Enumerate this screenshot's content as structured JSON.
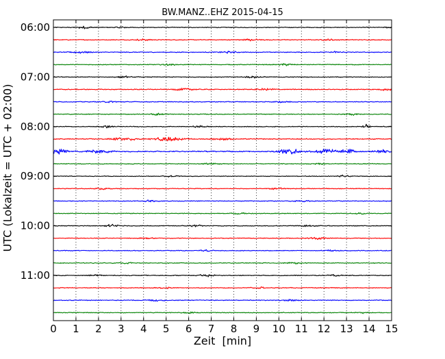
{
  "chart_data": {
    "type": "line",
    "title": "BW.MANZ..EHZ 2015-04-15",
    "xlabel": "Zeit  [min]",
    "ylabel": "UTC (Lokalzeit = UTC + 02:00)",
    "xlim": [
      0,
      15
    ],
    "x_ticks": [
      "0",
      "1",
      "2",
      "3",
      "4",
      "5",
      "6",
      "7",
      "8",
      "9",
      "10",
      "11",
      "12",
      "13",
      "14",
      "15"
    ],
    "y_tick_labels": [
      "06:00",
      "07:00",
      "08:00",
      "09:00",
      "10:00",
      "11:00"
    ],
    "trace_interval_minutes": 15,
    "grid": "vertical dotted at each minute",
    "color_cycle": [
      "#000000",
      "#ff0000",
      "#0000ff",
      "#008000"
    ],
    "series": [
      {
        "start": "06:00",
        "color": "#000000",
        "amplitude": 0.35,
        "events": [
          {
            "x": 1.4,
            "amp": 0.9,
            "width": 0.35
          },
          {
            "x": 3.0,
            "amp": 0.7,
            "width": 0.2
          },
          {
            "x": 14.9,
            "amp": 0.7,
            "width": 0.15
          }
        ]
      },
      {
        "start": "06:15",
        "color": "#ff0000",
        "amplitude": 0.35,
        "events": [
          {
            "x": 4.0,
            "amp": 0.7,
            "width": 0.3
          },
          {
            "x": 8.7,
            "amp": 0.9,
            "width": 0.4
          },
          {
            "x": 12.3,
            "amp": 0.6,
            "width": 0.3
          }
        ]
      },
      {
        "start": "06:30",
        "color": "#0000ff",
        "amplitude": 0.35,
        "events": [
          {
            "x": 1.2,
            "amp": 0.8,
            "width": 0.4
          },
          {
            "x": 7.8,
            "amp": 0.7,
            "width": 0.4
          },
          {
            "x": 12.6,
            "amp": 0.6,
            "width": 0.3
          }
        ]
      },
      {
        "start": "06:45",
        "color": "#008000",
        "amplitude": 0.35,
        "events": [
          {
            "x": 5.1,
            "amp": 0.5,
            "width": 0.3
          },
          {
            "x": 10.3,
            "amp": 0.6,
            "width": 0.3
          }
        ]
      },
      {
        "start": "07:00",
        "color": "#000000",
        "amplitude": 0.35,
        "events": [
          {
            "x": 3.1,
            "amp": 0.6,
            "width": 0.3
          },
          {
            "x": 8.9,
            "amp": 0.7,
            "width": 0.4
          }
        ]
      },
      {
        "start": "07:15",
        "color": "#ff0000",
        "amplitude": 0.4,
        "events": [
          {
            "x": 5.8,
            "amp": 0.8,
            "width": 0.4
          },
          {
            "x": 9.4,
            "amp": 0.7,
            "width": 0.4
          },
          {
            "x": 14.8,
            "amp": 0.7,
            "width": 0.3
          }
        ]
      },
      {
        "start": "07:30",
        "color": "#0000ff",
        "amplitude": 0.35,
        "events": [
          {
            "x": 2.5,
            "amp": 0.5,
            "width": 0.3
          },
          {
            "x": 10.2,
            "amp": 0.6,
            "width": 0.3
          }
        ]
      },
      {
        "start": "07:45",
        "color": "#008000",
        "amplitude": 0.35,
        "events": [
          {
            "x": 4.6,
            "amp": 0.6,
            "width": 0.3
          },
          {
            "x": 13.3,
            "amp": 0.6,
            "width": 0.3
          }
        ]
      },
      {
        "start": "08:00",
        "color": "#000000",
        "amplitude": 0.35,
        "events": [
          {
            "x": 2.4,
            "amp": 0.8,
            "width": 0.3
          },
          {
            "x": 6.5,
            "amp": 0.6,
            "width": 0.3
          },
          {
            "x": 13.9,
            "amp": 1.5,
            "width": 0.15
          }
        ]
      },
      {
        "start": "08:15",
        "color": "#ff0000",
        "amplitude": 0.4,
        "events": [
          {
            "x": 3.1,
            "amp": 1.2,
            "width": 0.5
          },
          {
            "x": 5.1,
            "amp": 1.3,
            "width": 0.6
          },
          {
            "x": 7.5,
            "amp": 0.8,
            "width": 0.4
          }
        ]
      },
      {
        "start": "08:30",
        "color": "#0000ff",
        "amplitude": 0.5,
        "events": [
          {
            "x": 0.25,
            "amp": 2.6,
            "width": 0.3
          },
          {
            "x": 2.0,
            "amp": 1.0,
            "width": 0.6
          },
          {
            "x": 10.5,
            "amp": 2.4,
            "width": 0.45
          },
          {
            "x": 12.1,
            "amp": 2.0,
            "width": 0.45
          },
          {
            "x": 13.1,
            "amp": 1.8,
            "width": 0.3
          },
          {
            "x": 14.6,
            "amp": 1.4,
            "width": 0.3
          }
        ]
      },
      {
        "start": "08:45",
        "color": "#008000",
        "amplitude": 0.35,
        "events": [
          {
            "x": 7.0,
            "amp": 0.5,
            "width": 0.4
          },
          {
            "x": 11.7,
            "amp": 0.6,
            "width": 0.3
          }
        ]
      },
      {
        "start": "09:00",
        "color": "#000000",
        "amplitude": 0.3,
        "events": [
          {
            "x": 5.3,
            "amp": 0.6,
            "width": 0.3
          },
          {
            "x": 12.9,
            "amp": 0.6,
            "width": 0.3
          }
        ]
      },
      {
        "start": "09:15",
        "color": "#ff0000",
        "amplitude": 0.35,
        "events": [
          {
            "x": 2.2,
            "amp": 0.6,
            "width": 0.3
          },
          {
            "x": 9.9,
            "amp": 0.6,
            "width": 0.3
          }
        ]
      },
      {
        "start": "09:30",
        "color": "#0000ff",
        "amplitude": 0.35,
        "events": [
          {
            "x": 4.3,
            "amp": 0.6,
            "width": 0.3
          },
          {
            "x": 11.0,
            "amp": 0.6,
            "width": 0.3
          }
        ]
      },
      {
        "start": "09:45",
        "color": "#008000",
        "amplitude": 0.35,
        "events": [
          {
            "x": 8.2,
            "amp": 0.6,
            "width": 0.3
          },
          {
            "x": 13.6,
            "amp": 0.5,
            "width": 0.3
          }
        ]
      },
      {
        "start": "10:00",
        "color": "#000000",
        "amplitude": 0.35,
        "events": [
          {
            "x": 2.6,
            "amp": 1.0,
            "width": 0.3
          },
          {
            "x": 6.3,
            "amp": 0.6,
            "width": 0.3
          },
          {
            "x": 11.3,
            "amp": 0.6,
            "width": 0.3
          }
        ]
      },
      {
        "start": "10:15",
        "color": "#ff0000",
        "amplitude": 0.35,
        "events": [
          {
            "x": 4.1,
            "amp": 0.6,
            "width": 0.3
          },
          {
            "x": 11.7,
            "amp": 0.8,
            "width": 0.4
          }
        ]
      },
      {
        "start": "10:30",
        "color": "#0000ff",
        "amplitude": 0.35,
        "events": [
          {
            "x": 6.8,
            "amp": 0.6,
            "width": 0.3
          },
          {
            "x": 12.3,
            "amp": 0.6,
            "width": 0.3
          }
        ]
      },
      {
        "start": "10:45",
        "color": "#008000",
        "amplitude": 0.35,
        "events": [
          {
            "x": 3.3,
            "amp": 0.5,
            "width": 0.3
          },
          {
            "x": 10.6,
            "amp": 0.6,
            "width": 0.3
          }
        ]
      },
      {
        "start": "11:00",
        "color": "#000000",
        "amplitude": 0.35,
        "events": [
          {
            "x": 1.9,
            "amp": 0.6,
            "width": 0.3
          },
          {
            "x": 6.8,
            "amp": 0.9,
            "width": 0.3
          },
          {
            "x": 12.5,
            "amp": 0.6,
            "width": 0.3
          }
        ]
      },
      {
        "start": "11:15",
        "color": "#ff0000",
        "amplitude": 0.35,
        "events": [
          {
            "x": 5.0,
            "amp": 0.6,
            "width": 0.3
          },
          {
            "x": 9.1,
            "amp": 0.6,
            "width": 0.3
          }
        ]
      },
      {
        "start": "11:30",
        "color": "#0000ff",
        "amplitude": 0.35,
        "events": [
          {
            "x": 4.6,
            "amp": 0.7,
            "width": 0.4
          },
          {
            "x": 10.5,
            "amp": 0.7,
            "width": 0.4
          }
        ]
      },
      {
        "start": "11:45",
        "color": "#008000",
        "amplitude": 0.35,
        "events": [
          {
            "x": 6.0,
            "amp": 0.5,
            "width": 0.3
          },
          {
            "x": 13.6,
            "amp": 0.5,
            "width": 0.3
          }
        ]
      }
    ]
  }
}
